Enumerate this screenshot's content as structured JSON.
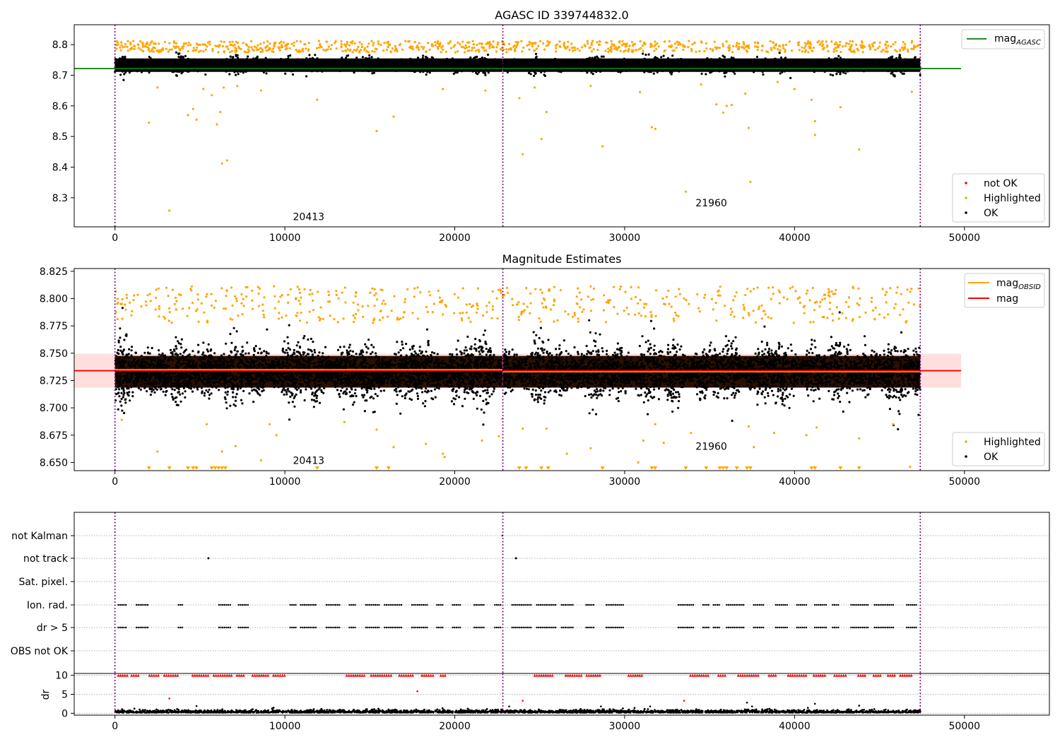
{
  "chart_data": [
    {
      "type": "scatter",
      "title": "AGASC ID 339744832.0",
      "xlim": [
        -2400,
        55000
      ],
      "ylim": [
        8.205,
        8.865
      ],
      "x_ticks": [
        0,
        10000,
        20000,
        30000,
        40000,
        50000
      ],
      "x_tick_labels": [
        "0",
        "10000",
        "20000",
        "30000",
        "40000",
        "50000"
      ],
      "y_ticks": [
        8.3,
        8.4,
        8.5,
        8.6,
        8.7,
        8.8
      ],
      "y_tick_labels": [
        "8.3",
        "8.4",
        "8.5",
        "8.6",
        "8.7",
        "8.8"
      ],
      "obs_boundaries": [
        0,
        22830,
        47400
      ],
      "obs_labels": [
        {
          "text": "20413",
          "x": 11400,
          "y": 8.227
        },
        {
          "text": "21960",
          "x": 35100,
          "y": 8.272
        }
      ],
      "reference_lines": [
        {
          "name": "mag_AGASC",
          "label_main": "mag",
          "label_sub": "AGASC",
          "color": "#008000",
          "y": 8.722,
          "x_range": [
            -2400,
            49800
          ]
        }
      ],
      "band": {
        "center": 8.733,
        "half_height": 0.022,
        "color": "#000000",
        "x_ranges": [
          [
            0,
            22800
          ],
          [
            22830,
            47400
          ]
        ]
      },
      "highlighted_points": [
        [
          2000,
          8.545
        ],
        [
          2500,
          8.66
        ],
        [
          3200,
          8.258
        ],
        [
          4300,
          8.57
        ],
        [
          4600,
          8.59
        ],
        [
          4800,
          8.555
        ],
        [
          5200,
          8.655
        ],
        [
          5700,
          8.635
        ],
        [
          6000,
          8.54
        ],
        [
          6200,
          8.58
        ],
        [
          6400,
          8.66
        ],
        [
          6300,
          8.412
        ],
        [
          6600,
          8.422
        ],
        [
          7200,
          8.665
        ],
        [
          8600,
          8.65
        ],
        [
          11900,
          8.62
        ],
        [
          15400,
          8.518
        ],
        [
          16400,
          8.565
        ],
        [
          19300,
          8.655
        ],
        [
          21800,
          8.65
        ],
        [
          23800,
          8.625
        ],
        [
          24000,
          8.442
        ],
        [
          24700,
          8.66
        ],
        [
          25100,
          8.492
        ],
        [
          25400,
          8.58
        ],
        [
          28000,
          8.665
        ],
        [
          28700,
          8.468
        ],
        [
          30900,
          8.645
        ],
        [
          31600,
          8.53
        ],
        [
          31800,
          8.525
        ],
        [
          33600,
          8.32
        ],
        [
          34500,
          8.67
        ],
        [
          35400,
          8.605
        ],
        [
          35800,
          8.578
        ],
        [
          36000,
          8.6
        ],
        [
          36300,
          8.603
        ],
        [
          37300,
          8.528
        ],
        [
          37400,
          8.352
        ],
        [
          37100,
          8.64
        ],
        [
          39000,
          8.678
        ],
        [
          40000,
          8.655
        ],
        [
          41000,
          8.62
        ],
        [
          41200,
          8.55
        ],
        [
          41200,
          8.505
        ],
        [
          42700,
          8.596
        ],
        [
          43800,
          8.458
        ],
        [
          46900,
          8.646
        ]
      ],
      "not_ok_points": [],
      "legend": {
        "lines_position": "upper right",
        "points_position": "lower right",
        "point_entries": [
          {
            "label": "not OK",
            "color": "#ff0000"
          },
          {
            "label": "Highlighted",
            "color": "#ffa500"
          },
          {
            "label": "OK",
            "color": "#000000"
          }
        ]
      }
    },
    {
      "type": "scatter",
      "title": "Magnitude Estimates",
      "xlim": [
        -2400,
        55000
      ],
      "ylim": [
        8.6425,
        8.8275
      ],
      "x_ticks": [
        0,
        10000,
        20000,
        30000,
        40000,
        50000
      ],
      "x_tick_labels": [
        "0",
        "10000",
        "20000",
        "30000",
        "40000",
        "50000"
      ],
      "y_ticks": [
        8.65,
        8.675,
        8.7,
        8.725,
        8.75,
        8.775,
        8.8,
        8.825
      ],
      "y_tick_labels": [
        "8.650",
        "8.675",
        "8.700",
        "8.725",
        "8.750",
        "8.775",
        "8.800",
        "8.825"
      ],
      "obs_boundaries": [
        0,
        22830,
        47400
      ],
      "obs_labels": [
        {
          "text": "20413",
          "x": 11400,
          "y": 8.6485
        },
        {
          "text": "21960",
          "x": 35100,
          "y": 8.6615
        }
      ],
      "uncertainty_band": {
        "color": "#ffcccc",
        "y_range": [
          8.7185,
          8.7495
        ],
        "x_range": [
          -2400,
          49800
        ]
      },
      "reference_lines": [
        {
          "name": "mag_OBSID",
          "label_main": "mag",
          "label_sub": "OBSID",
          "color": "#ffa500",
          "segments": [
            [
              0,
              22800,
              8.735
            ],
            [
              22830,
              47400,
              8.733
            ]
          ]
        },
        {
          "name": "mag",
          "label_main": "mag",
          "label_sub": "",
          "color": "#ff0000",
          "segments": [
            [
              -2400,
              49800,
              8.734
            ]
          ]
        }
      ],
      "band": {
        "center": 8.733,
        "half_height": 0.0145,
        "color": "#2a1000",
        "x_ranges": [
          [
            0,
            22800
          ],
          [
            22830,
            47400
          ]
        ]
      },
      "below_range_markers_x": [
        2000,
        3200,
        4300,
        4600,
        4800,
        5700,
        5900,
        6100,
        6300,
        6500,
        11900,
        15400,
        16100,
        23800,
        24200,
        25100,
        25500,
        28700,
        31600,
        31800,
        33600,
        34800,
        35600,
        35800,
        36000,
        36600,
        37200,
        37400,
        41000,
        41200,
        42700,
        43800
      ],
      "highlighted_points": [
        [
          400,
          8.689
        ],
        [
          2500,
          8.66
        ],
        [
          5400,
          8.685
        ],
        [
          6300,
          8.66
        ],
        [
          7100,
          8.665
        ],
        [
          8600,
          8.652
        ],
        [
          9100,
          8.685
        ],
        [
          9500,
          8.675
        ],
        [
          13500,
          8.687
        ],
        [
          15400,
          8.68
        ],
        [
          16400,
          8.664
        ],
        [
          18300,
          8.667
        ],
        [
          19300,
          8.658
        ],
        [
          19400,
          8.655
        ],
        [
          21600,
          8.67
        ],
        [
          22600,
          8.674
        ],
        [
          22800,
          8.69
        ],
        [
          24000,
          8.681
        ],
        [
          25400,
          8.681
        ],
        [
          26600,
          8.658
        ],
        [
          28000,
          8.663
        ],
        [
          30800,
          8.65
        ],
        [
          31100,
          8.67
        ],
        [
          31800,
          8.685
        ],
        [
          32300,
          8.668
        ],
        [
          33500,
          8.8
        ],
        [
          33900,
          8.677
        ],
        [
          37300,
          8.683
        ],
        [
          37600,
          8.664
        ],
        [
          38800,
          8.677
        ],
        [
          40700,
          8.675
        ],
        [
          41300,
          8.682
        ],
        [
          43800,
          8.672
        ],
        [
          45800,
          8.685
        ],
        [
          46800,
          8.646
        ]
      ],
      "legend": {
        "lines_position": "upper right",
        "points_position": "lower right",
        "point_entries": [
          {
            "label": "Highlighted",
            "color": "#ffa500"
          },
          {
            "label": "OK",
            "color": "#000000"
          }
        ]
      }
    },
    {
      "type": "scatter",
      "title": "",
      "xlim": [
        -2400,
        55000
      ],
      "categories": [
        "not Kalman",
        "not track",
        "Sat. pixel.",
        "Ion. rad.",
        "dr > 5",
        "OBS not OK"
      ],
      "flag_points": {
        "not track": [
          5500,
          23600
        ],
        "not Kalman": [
          22800
        ],
        "Ion. rad.": "periodic",
        "dr > 5": "periodic"
      },
      "obs_boundaries": [
        0,
        22830,
        47400
      ]
    },
    {
      "type": "scatter",
      "title": "",
      "xlim": [
        -2400,
        55000
      ],
      "ylim": [
        -0.5,
        10.5
      ],
      "ylabel": "dr",
      "y_ticks": [
        0,
        5,
        10
      ],
      "y_tick_labels": [
        "0",
        "5",
        "10"
      ],
      "x_ticks": [
        0,
        10000,
        20000,
        30000,
        40000,
        50000
      ],
      "x_tick_labels": [
        "0",
        "10000",
        "20000",
        "30000",
        "40000",
        "50000"
      ],
      "outliers": [
        [
          3200,
          3.9
        ],
        [
          4800,
          1.9
        ],
        [
          17800,
          5.8
        ],
        [
          23200,
          1.8
        ],
        [
          24000,
          3.3
        ],
        [
          28600,
          1.8
        ],
        [
          31500,
          1.8
        ],
        [
          33500,
          3.3
        ],
        [
          37200,
          2.8
        ],
        [
          37500,
          1.8
        ],
        [
          41200,
          2.5
        ],
        [
          43800,
          2.0
        ]
      ],
      "clipped_value": 10,
      "obs_boundaries": [
        0,
        22830,
        47400
      ]
    }
  ]
}
